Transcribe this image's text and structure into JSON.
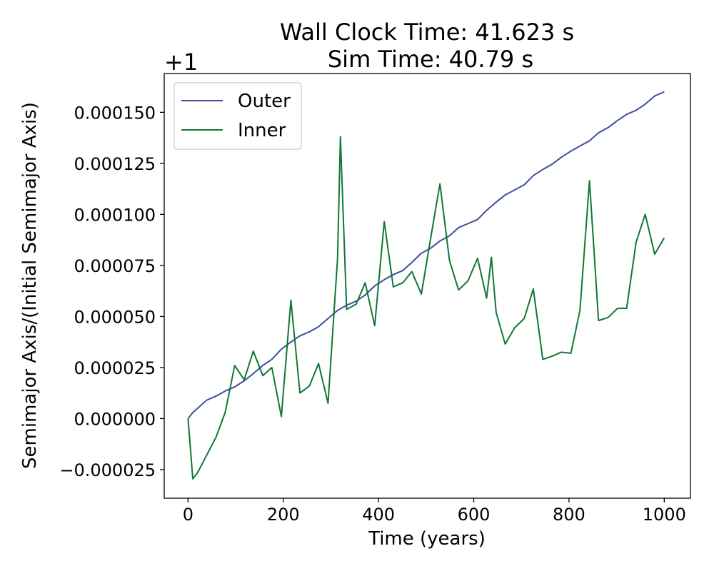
{
  "chart_data": {
    "type": "line",
    "title": "Wall Clock Time: 41.623 s",
    "subtitle": "Sim Time: 40.79 s",
    "xlabel": "Time (years)",
    "ylabel": "Semimajor Axis/(Initial Semimajor Axis)",
    "offset_label": "+1",
    "xlim": [
      -50,
      1055
    ],
    "ylim": [
      -3.9e-05,
      0.000169
    ],
    "x_ticks": [
      0,
      200,
      400,
      600,
      800,
      1000
    ],
    "x_tick_labels": [
      "0",
      "200",
      "400",
      "600",
      "800",
      "1000"
    ],
    "y_ticks": [
      -2.5e-05,
      0,
      2.5e-05,
      5e-05,
      7.5e-05,
      0.0001,
      0.000125,
      0.00015
    ],
    "y_tick_labels": [
      "−0.000025",
      "0.000000",
      "0.000025",
      "0.000050",
      "0.000075",
      "0.000100",
      "0.000125",
      "0.000150"
    ],
    "grid": false,
    "legend_position": "top-left",
    "series": [
      {
        "name": "Outer",
        "color": "#3d4f99",
        "x": [
          0,
          10,
          20,
          39,
          59,
          78,
          98,
          118,
          137,
          157,
          176,
          196,
          216,
          235,
          255,
          274,
          294,
          314,
          333,
          353,
          372,
          392,
          412,
          431,
          451,
          470,
          490,
          510,
          529,
          549,
          568,
          588,
          608,
          627,
          647,
          666,
          686,
          706,
          725,
          745,
          764,
          784,
          804,
          823,
          843,
          862,
          882,
          902,
          921,
          941,
          960,
          980,
          1000
        ],
        "y": [
          0.0,
          3e-06,
          5e-06,
          9e-06,
          1.1e-05,
          1.35e-05,
          1.55e-05,
          1.85e-05,
          2.2e-05,
          2.6e-05,
          2.9e-05,
          3.4e-05,
          3.75e-05,
          4.05e-05,
          4.25e-05,
          4.5e-05,
          4.9e-05,
          5.3e-05,
          5.55e-05,
          5.75e-05,
          6.05e-05,
          6.5e-05,
          6.8e-05,
          7.05e-05,
          7.25e-05,
          7.65e-05,
          8.1e-05,
          8.35e-05,
          8.7e-05,
          8.95e-05,
          9.35e-05,
          9.55e-05,
          9.75e-05,
          0.000102,
          0.000106,
          0.0001095,
          0.000112,
          0.0001145,
          0.000119,
          0.000122,
          0.0001245,
          0.000128,
          0.000131,
          0.0001335,
          0.000136,
          0.00014,
          0.0001425,
          0.000146,
          0.000149,
          0.000151,
          0.000154,
          0.000158,
          0.00016
        ]
      },
      {
        "name": "Inner",
        "color": "#117733",
        "x": [
          0,
          10,
          20,
          39,
          59,
          78,
          98,
          118,
          137,
          157,
          176,
          196,
          216,
          235,
          255,
          274,
          294,
          314,
          320,
          333,
          353,
          372,
          392,
          412,
          431,
          451,
          470,
          490,
          510,
          529,
          549,
          568,
          588,
          608,
          627,
          637,
          647,
          666,
          686,
          706,
          725,
          745,
          764,
          784,
          804,
          823,
          843,
          862,
          882,
          902,
          921,
          941,
          960,
          980,
          1000
        ],
        "y": [
          0.0,
          -2.95e-05,
          -2.65e-05,
          -1.8e-05,
          -9e-06,
          3e-06,
          2.6e-05,
          1.9e-05,
          3.3e-05,
          2.1e-05,
          2.5e-05,
          1e-06,
          5.8e-05,
          1.25e-05,
          1.6e-05,
          2.7e-05,
          7.5e-06,
          7.85e-05,
          0.000138,
          5.35e-05,
          5.6e-05,
          6.65e-05,
          4.55e-05,
          9.65e-05,
          6.45e-05,
          6.65e-05,
          7.2e-05,
          6.1e-05,
          8.9e-05,
          0.000115,
          7.75e-05,
          6.3e-05,
          6.75e-05,
          7.85e-05,
          5.9e-05,
          7.9e-05,
          5.2e-05,
          3.65e-05,
          4.45e-05,
          4.9e-05,
          6.35e-05,
          2.9e-05,
          3.05e-05,
          3.25e-05,
          3.2e-05,
          5.3e-05,
          0.0001165,
          4.8e-05,
          4.95e-05,
          5.4e-05,
          5.4e-05,
          8.65e-05,
          0.0001,
          8.05e-05,
          8.85e-05
        ]
      }
    ]
  }
}
